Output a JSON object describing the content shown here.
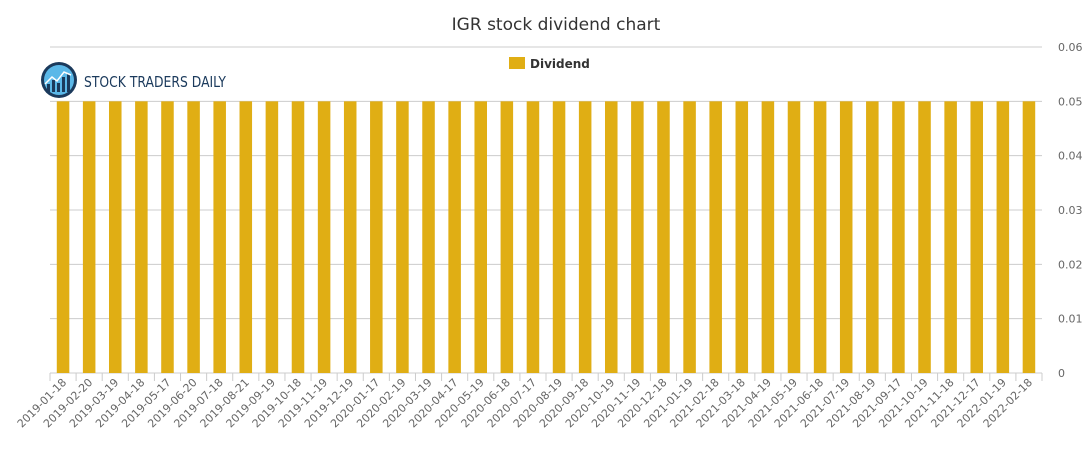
{
  "logo": {
    "text": "STOCK TRADERS DAILY",
    "icon": "bar-chart-globe-icon"
  },
  "colors": {
    "bar": "#e0ae14",
    "grid": "#cccccc",
    "logo_dark": "#1b3a5c",
    "logo_light": "#5bb8e8"
  },
  "chart_data": {
    "type": "bar",
    "title": "IGR stock dividend chart",
    "xlabel": "",
    "ylabel": "",
    "ylim": [
      0,
      0.06
    ],
    "yticks": [
      "0",
      "0.01",
      "0.02",
      "0.03",
      "0.04",
      "0.05",
      "0.06"
    ],
    "grid": true,
    "legend_position": "top-center",
    "categories": [
      "2019-01-18",
      "2019-02-20",
      "2019-03-19",
      "2019-04-18",
      "2019-05-17",
      "2019-06-20",
      "2019-07-18",
      "2019-08-21",
      "2019-09-19",
      "2019-10-18",
      "2019-11-19",
      "2019-12-19",
      "2020-01-17",
      "2020-02-19",
      "2020-03-19",
      "2020-04-17",
      "2020-05-19",
      "2020-06-18",
      "2020-07-17",
      "2020-08-19",
      "2020-09-18",
      "2020-10-19",
      "2020-11-19",
      "2020-12-18",
      "2021-01-19",
      "2021-02-18",
      "2021-03-18",
      "2021-04-19",
      "2021-05-19",
      "2021-06-18",
      "2021-07-19",
      "2021-08-19",
      "2021-09-17",
      "2021-10-19",
      "2021-11-18",
      "2021-12-17",
      "2022-01-19",
      "2022-02-18"
    ],
    "series": [
      {
        "name": "Dividend",
        "values": [
          0.05,
          0.05,
          0.05,
          0.05,
          0.05,
          0.05,
          0.05,
          0.05,
          0.05,
          0.05,
          0.05,
          0.05,
          0.05,
          0.05,
          0.05,
          0.05,
          0.05,
          0.05,
          0.05,
          0.05,
          0.05,
          0.05,
          0.05,
          0.05,
          0.05,
          0.05,
          0.05,
          0.05,
          0.05,
          0.05,
          0.05,
          0.05,
          0.05,
          0.05,
          0.05,
          0.05,
          0.05,
          0.05
        ]
      }
    ]
  }
}
